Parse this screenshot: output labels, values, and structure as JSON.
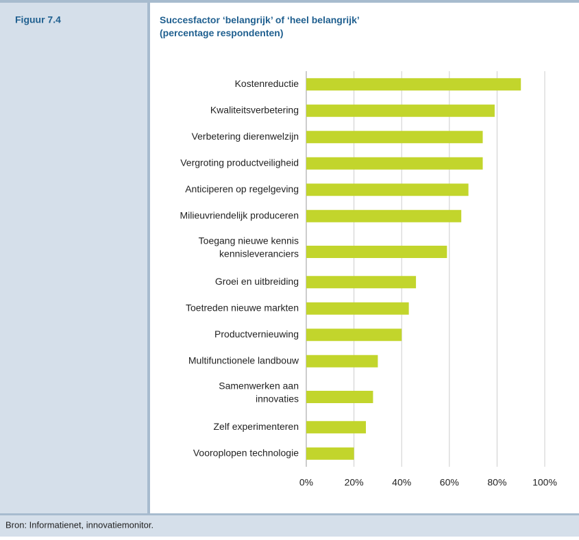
{
  "figure_label": "Figuur 7.4",
  "source": "Bron: Informatienet, innovatiemonitor.",
  "chart_data": {
    "type": "barh",
    "title": "Succesfactor ‘belangrijk’ of ‘heel belangrijk’\n(percentage respondenten)",
    "categories": [
      "Kostenreductie",
      "Kwaliteitsverbetering",
      "Verbetering dierenwelzijn",
      "Vergroting productveiligheid",
      "Anticiperen op regelgeving",
      "Milieuvriendelijk produceren",
      "Toegang nieuwe kennis\nkennisleveranciers",
      "Groei en uitbreiding",
      "Toetreden nieuwe markten",
      "Productvernieuwing",
      "Multifunctionele landbouw",
      "Samenwerken aan\ninnovaties",
      "Zelf experimenteren",
      "Vooroplopen technologie"
    ],
    "values": [
      90,
      79,
      74,
      74,
      68,
      65,
      59,
      46,
      43,
      40,
      30,
      28,
      25,
      20
    ],
    "color": "#c2d52c",
    "xlim": [
      0,
      100
    ],
    "xticks": [
      {
        "value": 0,
        "label": "0%"
      },
      {
        "value": 20,
        "label": "20%"
      },
      {
        "value": 40,
        "label": "40%"
      },
      {
        "value": 60,
        "label": "60%"
      },
      {
        "value": 80,
        "label": "80%"
      },
      {
        "value": 100,
        "label": "100%"
      }
    ],
    "grid": true
  }
}
